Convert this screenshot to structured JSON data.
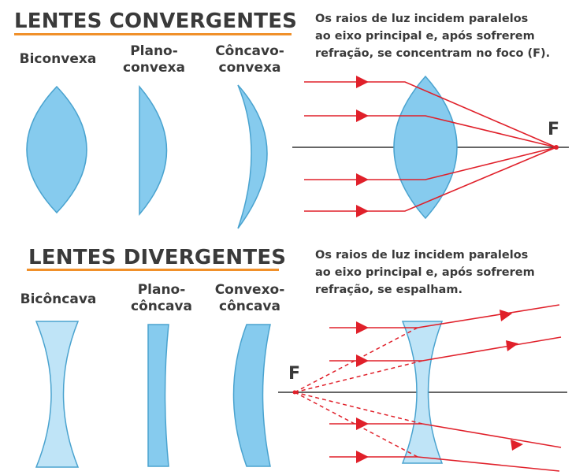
{
  "convergent": {
    "title": "LENTES CONVERGENTES",
    "lenses": [
      {
        "line1": "Biconvexa",
        "line2": ""
      },
      {
        "line1": "Plano-",
        "line2": "convexa"
      },
      {
        "line1": "Côncavo-",
        "line2": "convexa"
      }
    ],
    "description": [
      "Os raios de luz incidem paralelos",
      "ao eixo principal e, após sofrerem",
      "refração, se concentram no foco (F)."
    ],
    "focus_label": "F"
  },
  "divergent": {
    "title": "LENTES DIVERGENTES",
    "lenses": [
      {
        "line1": "Bicôncava",
        "line2": ""
      },
      {
        "line1": "Plano-",
        "line2": "côncava"
      },
      {
        "line1": "Convexo-",
        "line2": "côncava"
      }
    ],
    "description": [
      "Os raios de luz incidem paralelos",
      "ao eixo principal e, após sofrerem",
      "refração, se espalham."
    ],
    "focus_label": "F"
  },
  "colors": {
    "convex_fill": "#86cbee",
    "concave_fill": "#bfe4f7",
    "lens_stroke": "#4aa3cf",
    "ray": "#e0202a",
    "axis": "#333333",
    "accent_underline": "#f0902a"
  }
}
